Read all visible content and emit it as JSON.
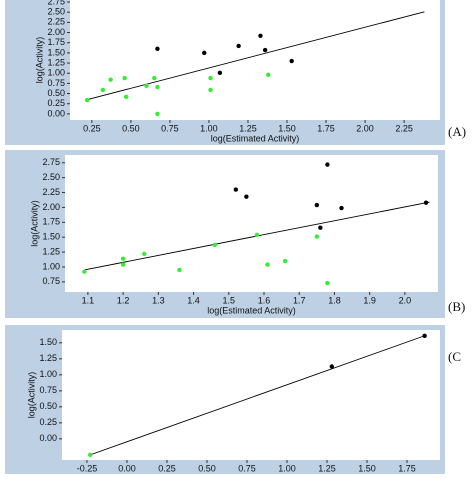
{
  "chart_data": [
    {
      "type": "scatter",
      "panel_label": "(A)",
      "xlabel": "log(Estimated Activity)",
      "ylabel": "log(Activity)",
      "xlim": [
        0.11,
        2.48
      ],
      "ylim": [
        -0.15,
        2.8
      ],
      "xticks": [
        0.25,
        {
          "value": 0.5,
          "label": "0.50"
        },
        0.75,
        {
          "value": 1,
          "label": "1.00"
        },
        1.25,
        {
          "value": 1.5,
          "label": "1.50"
        },
        1.75,
        {
          "value": 2,
          "label": "2.00"
        },
        2.25
      ],
      "yticks": [
        {
          "value": 0,
          "label": "0.00"
        },
        0.25,
        {
          "value": 0.5,
          "label": "0.50"
        },
        0.75,
        {
          "value": 1,
          "label": "1.00"
        },
        1.25,
        {
          "value": 1.5,
          "label": "1.50"
        },
        1.75,
        {
          "value": 2,
          "label": "2.00"
        },
        2.25,
        {
          "value": 2.5,
          "label": "2.50"
        },
        2.75
      ],
      "series": [
        {
          "color": "#000000",
          "x": [
            0.67,
            0.97,
            1.07,
            1.19,
            1.33,
            1.36,
            1.53
          ],
          "values": [
            1.6,
            1.5,
            1.01,
            1.67,
            1.92,
            1.57,
            1.3
          ]
        },
        {
          "color": "#33ee33",
          "x": [
            0.22,
            0.32,
            0.37,
            0.46,
            0.47,
            0.6,
            0.65,
            0.67,
            0.67,
            1.01,
            1.01,
            1.38
          ],
          "values": [
            0.34,
            0.59,
            0.84,
            0.88,
            0.42,
            0.69,
            0.88,
            0.66,
            0.0,
            0.88,
            0.59,
            0.96
          ]
        }
      ],
      "fit": {
        "color": "#000000",
        "x": [
          0.21,
          2.38
        ],
        "values": [
          0.34,
          2.51
        ]
      }
    },
    {
      "type": "scatter",
      "panel_label": "(B)",
      "xlabel": "log(Estimated Activity)",
      "ylabel": "log(Activity)",
      "xlim": [
        1.035,
        2.094
      ],
      "ylim": [
        0.58,
        2.88
      ],
      "xticks": [
        1.1,
        1.2,
        1.3,
        1.4,
        1.5,
        1.6,
        1.7,
        1.8,
        1.9,
        {
          "value": 2,
          "label": "2.0"
        }
      ],
      "yticks": [
        0.75,
        {
          "value": 1,
          "label": "1.00"
        },
        1.25,
        {
          "value": 1.5,
          "label": "1.50"
        },
        1.75,
        {
          "value": 2,
          "label": "2.00"
        },
        2.25,
        {
          "value": 2.5,
          "label": "2.50"
        },
        2.75
      ],
      "series": [
        {
          "color": "#000000",
          "x": [
            1.52,
            1.55,
            1.75,
            1.76,
            1.78,
            1.82,
            2.06
          ],
          "values": [
            2.3,
            2.18,
            2.04,
            1.66,
            2.72,
            1.99,
            2.08
          ]
        },
        {
          "color": "#33ee33",
          "x": [
            1.09,
            1.2,
            1.2,
            1.26,
            1.36,
            1.46,
            1.58,
            1.61,
            1.66,
            1.75,
            1.78
          ],
          "values": [
            0.92,
            1.14,
            1.04,
            1.22,
            0.95,
            1.37,
            1.54,
            1.04,
            1.1,
            1.51,
            0.73
          ]
        }
      ],
      "fit": {
        "color": "#000000",
        "x": [
          1.09,
          2.07
        ],
        "values": [
          0.95,
          2.09
        ]
      }
    },
    {
      "type": "scatter",
      "panel_label": "(C",
      "ylabel": "log(Activity)",
      "xlim": [
        -0.406,
        1.956
      ],
      "ylim": [
        -0.33,
        1.7
      ],
      "xticks": [
        -0.25,
        {
          "value": 0,
          "label": "0.00"
        },
        0.25,
        {
          "value": 0.5,
          "label": "0.50"
        },
        0.75,
        {
          "value": 1,
          "label": "1.00"
        },
        1.25,
        {
          "value": 1.5,
          "label": "1.50"
        },
        1.75
      ],
      "yticks": [
        {
          "value": 0,
          "label": "0.00"
        },
        0.25,
        {
          "value": 0.5,
          "label": "0.50"
        },
        0.75,
        {
          "value": 1,
          "label": "1.00"
        },
        1.25,
        {
          "value": 1.5,
          "label": "1.50"
        }
      ],
      "series": [
        {
          "color": "#000000",
          "x": [
            1.28,
            1.86
          ],
          "values": [
            1.13,
            1.61
          ]
        },
        {
          "color": "#33ee33",
          "x": [
            -0.23
          ],
          "values": [
            -0.25
          ]
        }
      ],
      "fit": {
        "color": "#000000",
        "x": [
          -0.23,
          1.86
        ],
        "values": [
          -0.25,
          1.61
        ]
      }
    }
  ]
}
